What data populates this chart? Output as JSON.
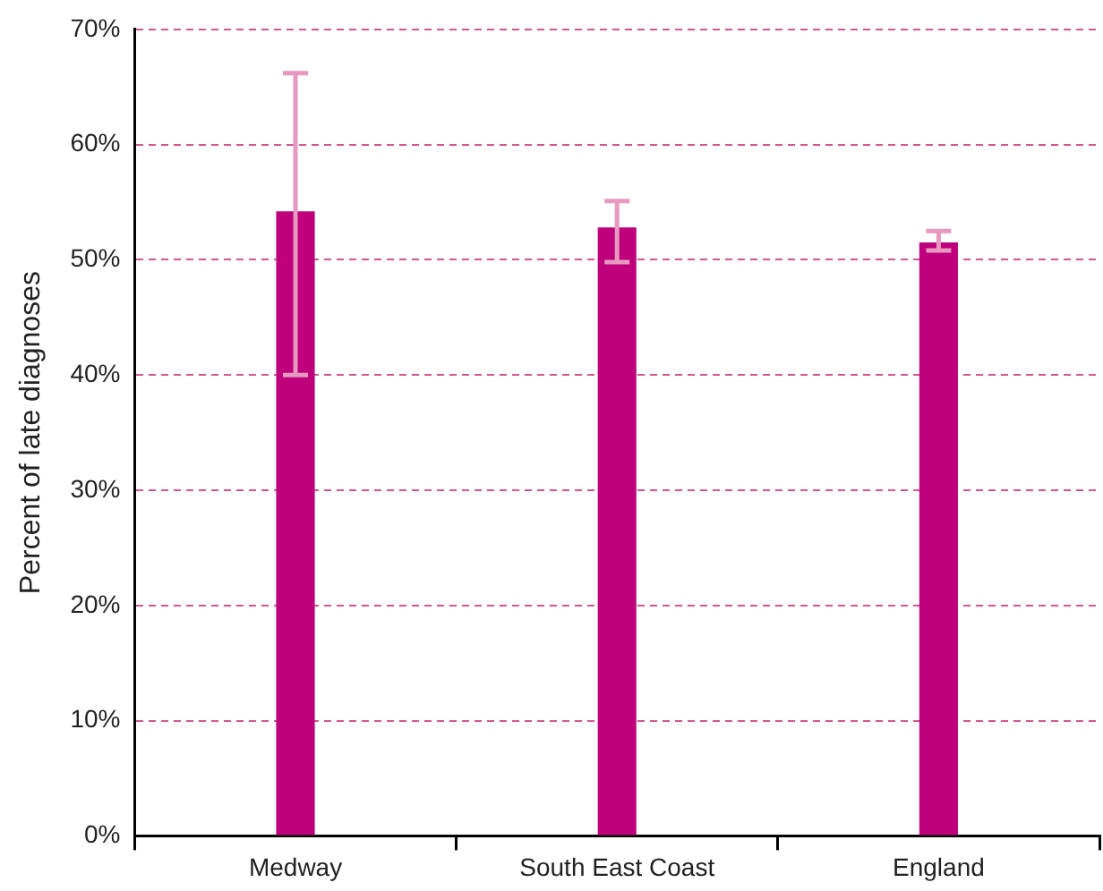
{
  "chart_data": {
    "type": "bar",
    "ylabel": "Percent of late diagnoses",
    "categories": [
      "Medway",
      "South East Coast",
      "England"
    ],
    "values": [
      54.2,
      52.8,
      51.5
    ],
    "color": "#be007c",
    "errors": [
      [
        40,
        66.2
      ],
      [
        49.8,
        55.1
      ],
      [
        50.8,
        52.5
      ]
    ],
    "ylim": [
      0,
      70
    ],
    "yticks": [
      {
        "value": 0,
        "label": "0%"
      },
      {
        "value": 10,
        "label": "10%"
      },
      {
        "value": 20,
        "label": "20%"
      },
      {
        "value": 30,
        "label": "30%"
      },
      {
        "value": 40,
        "label": "40%"
      },
      {
        "value": 50,
        "label": "50%"
      },
      {
        "value": 60,
        "label": "60%"
      },
      {
        "value": 70,
        "label": "70%"
      }
    ],
    "grid": "y"
  }
}
